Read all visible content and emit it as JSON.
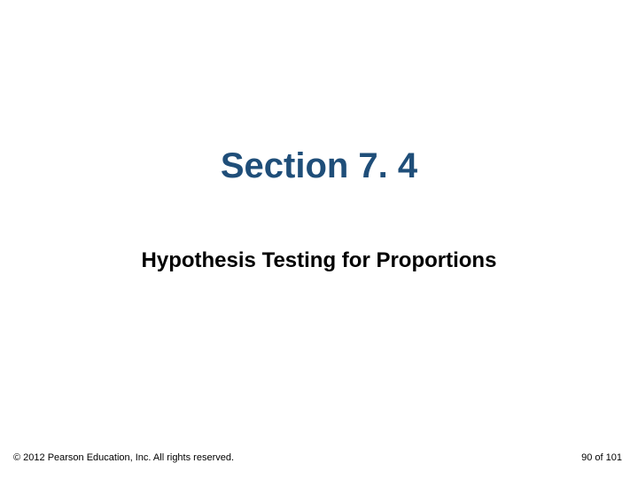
{
  "slide": {
    "section_title": "Section 7. 4",
    "subtitle": "Hypothesis Testing for Proportions",
    "copyright": "© 2012 Pearson Education, Inc. All rights reserved.",
    "page_number": "90 of 101"
  },
  "styles": {
    "section_title_color": "#1f4e79",
    "section_title_fontsize": 40,
    "subtitle_color": "#000000",
    "subtitle_fontsize": 24,
    "copyright_color": "#000000",
    "copyright_fontsize": 11,
    "page_number_color": "#000000",
    "page_number_fontsize": 11,
    "background_color": "#ffffff"
  }
}
